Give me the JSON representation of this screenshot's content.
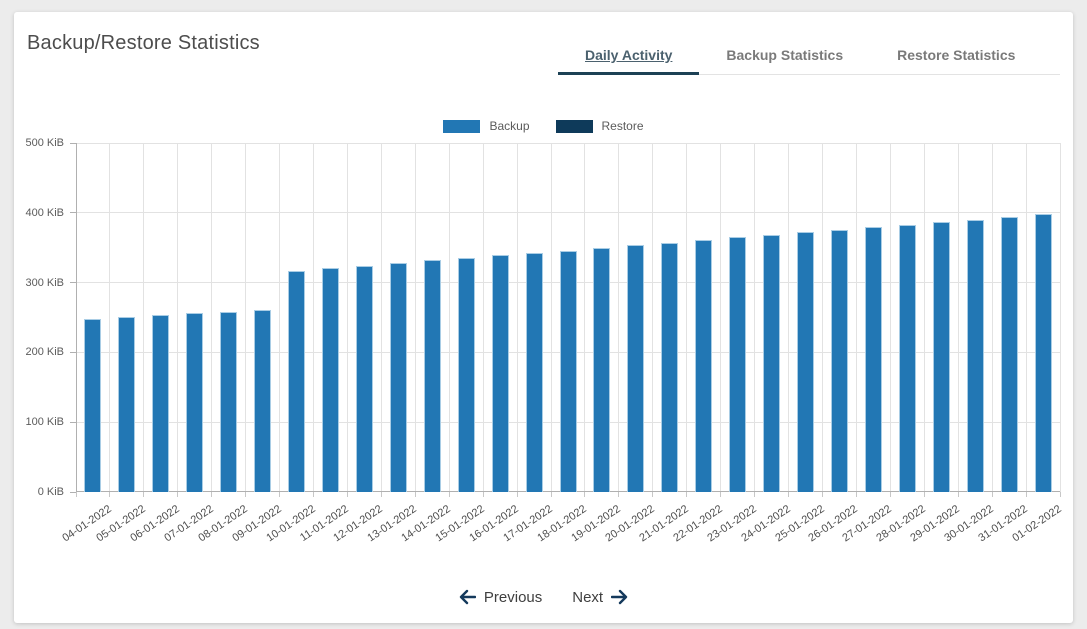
{
  "card": {
    "title": "Backup/Restore Statistics",
    "tabs": [
      {
        "label": "Daily Activity",
        "active": true
      },
      {
        "label": "Backup Statistics",
        "active": false
      },
      {
        "label": "Restore Statistics",
        "active": false
      }
    ],
    "pagination": {
      "previous_label": "Previous",
      "next_label": "Next"
    }
  },
  "chart_data": {
    "type": "bar",
    "title": "",
    "xlabel": "",
    "ylabel": "",
    "y_unit": "KiB",
    "ylim": [
      0,
      500
    ],
    "y_tick_step": 100,
    "y_tick_labels": [
      "0 KiB",
      "100 KiB",
      "200 KiB",
      "300 KiB",
      "400 KiB",
      "500 KiB"
    ],
    "grid": true,
    "legend_position": "top",
    "categories": [
      "04-01-2022",
      "05-01-2022",
      "06-01-2022",
      "07-01-2022",
      "08-01-2022",
      "09-01-2022",
      "10-01-2022",
      "11-01-2022",
      "12-01-2022",
      "13-01-2022",
      "14-01-2022",
      "15-01-2022",
      "16-01-2022",
      "17-01-2022",
      "18-01-2022",
      "19-01-2022",
      "20-01-2022",
      "21-01-2022",
      "22-01-2022",
      "23-01-2022",
      "24-01-2022",
      "25-01-2022",
      "26-01-2022",
      "27-01-2022",
      "28-01-2022",
      "29-01-2022",
      "30-01-2022",
      "31-01-2022",
      "01-02-2022"
    ],
    "series": [
      {
        "name": "Backup",
        "color": "#2277b4",
        "values": [
          248,
          251,
          253,
          256,
          258,
          261,
          317,
          321,
          324,
          328,
          332,
          335,
          339,
          343,
          346,
          350,
          354,
          357,
          361,
          365,
          368,
          372,
          376,
          379,
          383,
          387,
          390,
          394,
          398
        ]
      },
      {
        "name": "Restore",
        "color": "#0e3a5a",
        "values": [
          0,
          0,
          0,
          0,
          0,
          0,
          0,
          0,
          0,
          0,
          0,
          0,
          0,
          0,
          0,
          0,
          0,
          0,
          0,
          0,
          0,
          0,
          0,
          0,
          0,
          0,
          0,
          0,
          0
        ]
      }
    ]
  },
  "colors": {
    "page_background": "#ececec",
    "card_background": "#ffffff",
    "accent_navy": "#1c4155",
    "arrow": "#14395c",
    "grid": "#e2e2e2",
    "axis": "#b0b0b0"
  }
}
